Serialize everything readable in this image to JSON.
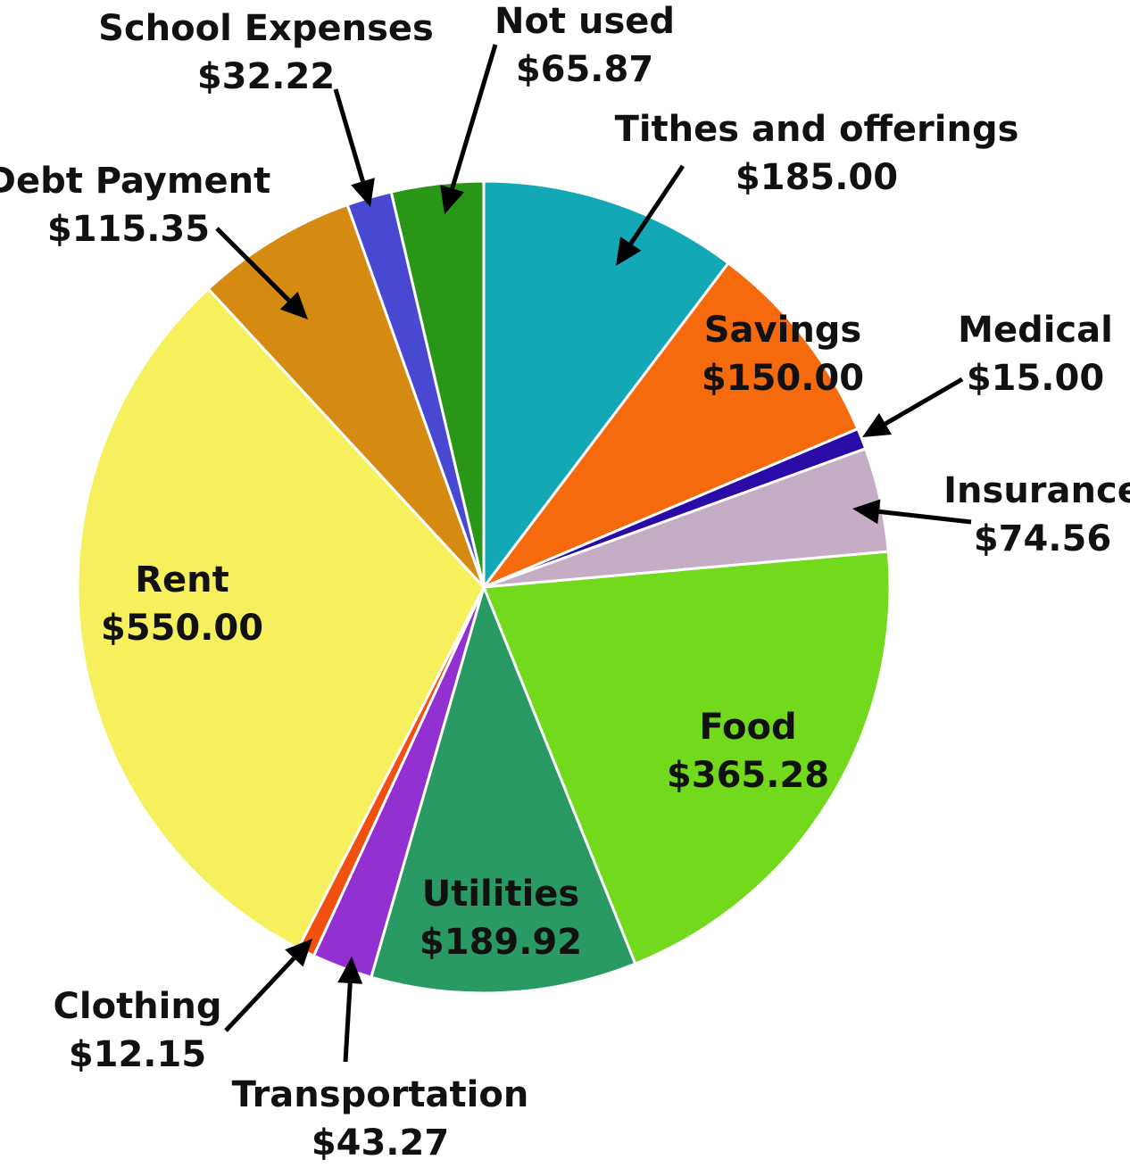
{
  "chart_data": {
    "type": "pie",
    "title": "",
    "start_angle_deg": 0,
    "direction": "clockwise",
    "slices": [
      {
        "name": "Tithes and offerings",
        "label": "Tithes and offerings",
        "value_text": "$185.00",
        "value": 185.0,
        "color": "#12a8b6"
      },
      {
        "name": "Savings",
        "label": "Savings",
        "value_text": "$150.00",
        "value": 150.0,
        "color": "#f56a0c"
      },
      {
        "name": "Medical",
        "label": "Medical",
        "value_text": "$15.00",
        "value": 15.0,
        "color": "#2a0ba8"
      },
      {
        "name": "Insurance",
        "label": "Insurance",
        "value_text": "$74.56",
        "value": 74.56,
        "color": "#c4adc5"
      },
      {
        "name": "Food",
        "label": "Food",
        "value_text": "$365.28",
        "value": 365.28,
        "color": "#72d91c"
      },
      {
        "name": "Utilities",
        "label": "Utilities",
        "value_text": "$189.92",
        "value": 189.92,
        "color": "#2a9a64"
      },
      {
        "name": "Transportation",
        "label": "Transportation",
        "value_text": "$43.27",
        "value": 43.27,
        "color": "#9230d1"
      },
      {
        "name": "Clothing",
        "label": "Clothing",
        "value_text": "$12.15",
        "value": 12.15,
        "color": "#f2500f"
      },
      {
        "name": "Rent",
        "label": "Rent",
        "value_text": "$550.00",
        "value": 550.0,
        "color": "#f5f05c"
      },
      {
        "name": "Debt Payment",
        "label": "Debt Payment",
        "value_text": "$115.35",
        "value": 115.35,
        "color": "#d58a12"
      },
      {
        "name": "School Expenses",
        "label": "School Expenses",
        "value_text": "$32.22",
        "value": 32.22,
        "color": "#4848d2"
      },
      {
        "name": "Not used",
        "label": "Not used",
        "value_text": "$65.87",
        "value": 65.87,
        "color": "#2a9618"
      }
    ]
  }
}
